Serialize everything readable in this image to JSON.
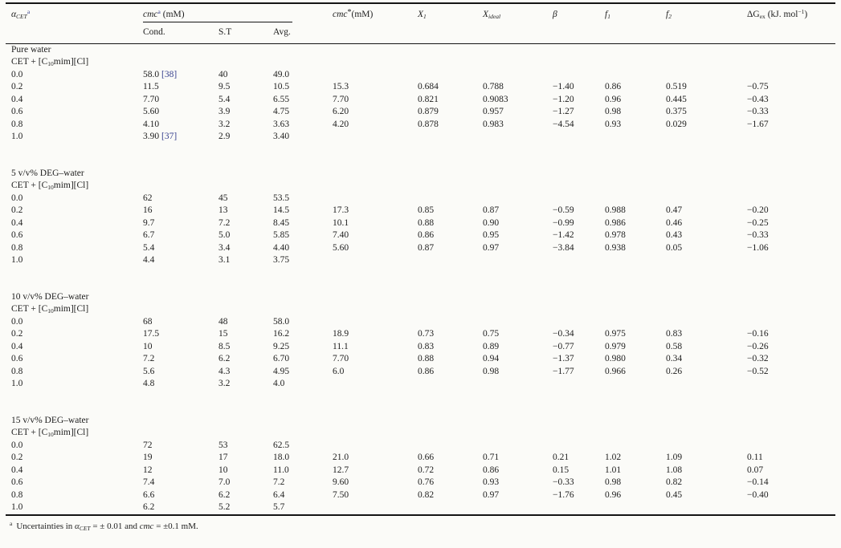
{
  "colors": {
    "citation_link": "#39428f",
    "rule": "#151515",
    "paper_bg": "#fbfbf8"
  },
  "table": {
    "header": {
      "alpha": {
        "symbol": "α",
        "sub": "CET",
        "sup": "a"
      },
      "cmc_group": {
        "name": "cmc",
        "sup": "a",
        "unit": " (mM)"
      },
      "cond": "Cond.",
      "st": "S.T",
      "avg": "Avg.",
      "cmc_star": {
        "name": "cmc",
        "sup": "*",
        "unit": "(mM)"
      },
      "x1": {
        "symbol": "X",
        "sub": "1"
      },
      "x_ideal": {
        "symbol": "X",
        "sub": "ideal"
      },
      "beta": "β",
      "f1": {
        "symbol": "f",
        "sub": "1"
      },
      "f2": {
        "symbol": "f",
        "sub": "2"
      },
      "dg_ex": {
        "pre": "ΔG",
        "sub": "ex",
        "unit": " (kJ. mol",
        "sup": "−1",
        "post": ")"
      }
    },
    "system": {
      "pre": "CET + [C",
      "sub": "10",
      "post": "mim][Cl]"
    },
    "sections": [
      {
        "title": "Pure water",
        "rows": [
          {
            "alpha": "0.0",
            "cond": "58.0",
            "cond_ref": "[38]",
            "st": "40",
            "avg": "49.0"
          },
          {
            "alpha": "0.2",
            "cond": "11.5",
            "st": "9.5",
            "avg": "10.5",
            "cmc_star": "15.3",
            "x1": "0.684",
            "x_ideal": "0.788",
            "beta": "−1.40",
            "f1": "0.86",
            "f2": "0.519",
            "dg_ex": "−0.75"
          },
          {
            "alpha": "0.4",
            "cond": "7.70",
            "st": "5.4",
            "avg": "6.55",
            "cmc_star": "7.70",
            "x1": "0.821",
            "x_ideal": "0.9083",
            "beta": "−1.20",
            "f1": "0.96",
            "f2": "0.445",
            "dg_ex": "−0.43"
          },
          {
            "alpha": "0.6",
            "cond": "5.60",
            "st": "3.9",
            "avg": "4.75",
            "cmc_star": "6.20",
            "x1": "0.879",
            "x_ideal": "0.957",
            "beta": "−1.27",
            "f1": "0.98",
            "f2": "0.375",
            "dg_ex": "−0.33"
          },
          {
            "alpha": "0.8",
            "cond": "4.10",
            "st": "3.2",
            "avg": "3.63",
            "cmc_star": "4.20",
            "x1": "0.878",
            "x_ideal": "0.983",
            "beta": "−4.54",
            "f1": "0.93",
            "f2": "0.029",
            "dg_ex": "−1.67"
          },
          {
            "alpha": "1.0",
            "cond": "3.90",
            "cond_ref": "[37]",
            "st": "2.9",
            "avg": "3.40"
          }
        ]
      },
      {
        "title": "5 v/v% DEG–water",
        "rows": [
          {
            "alpha": "0.0",
            "cond": "62",
            "st": "45",
            "avg": "53.5"
          },
          {
            "alpha": "0.2",
            "cond": "16",
            "st": "13",
            "avg": "14.5",
            "cmc_star": "17.3",
            "x1": "0.85",
            "x_ideal": "0.87",
            "beta": "−0.59",
            "f1": "0.988",
            "f2": "0.47",
            "dg_ex": "−0.20"
          },
          {
            "alpha": "0.4",
            "cond": "9.7",
            "st": "7.2",
            "avg": "8.45",
            "cmc_star": "10.1",
            "x1": "0.88",
            "x_ideal": "0.90",
            "beta": "−0.99",
            "f1": "0.986",
            "f2": "0.46",
            "dg_ex": "−0.25"
          },
          {
            "alpha": "0.6",
            "cond": "6.7",
            "st": "5.0",
            "avg": "5.85",
            "cmc_star": "7.40",
            "x1": "0.86",
            "x_ideal": "0.95",
            "beta": "−1.42",
            "f1": "0.978",
            "f2": "0.43",
            "dg_ex": "−0.33"
          },
          {
            "alpha": "0.8",
            "cond": "5.4",
            "st": "3.4",
            "avg": "4.40",
            "cmc_star": "5.60",
            "x1": "0.87",
            "x_ideal": "0.97",
            "beta": "−3.84",
            "f1": "0.938",
            "f2": "0.05",
            "dg_ex": "−1.06"
          },
          {
            "alpha": "1.0",
            "cond": "4.4",
            "st": "3.1",
            "avg": "3.75"
          }
        ]
      },
      {
        "title": "10 v/v% DEG–water",
        "rows": [
          {
            "alpha": "0.0",
            "cond": "68",
            "st": "48",
            "avg": "58.0"
          },
          {
            "alpha": "0.2",
            "cond": "17.5",
            "st": "15",
            "avg": "16.2",
            "cmc_star": "18.9",
            "x1": "0.73",
            "x_ideal": "0.75",
            "beta": "−0.34",
            "f1": "0.975",
            "f2": "0.83",
            "dg_ex": "−0.16"
          },
          {
            "alpha": "0.4",
            "cond": "10",
            "st": "8.5",
            "avg": "9.25",
            "cmc_star": "11.1",
            "x1": "0.83",
            "x_ideal": "0.89",
            "beta": "−0.77",
            "f1": "0.979",
            "f2": "0.58",
            "dg_ex": "−0.26"
          },
          {
            "alpha": "0.6",
            "cond": "7.2",
            "st": "6.2",
            "avg": "6.70",
            "cmc_star": "7.70",
            "x1": "0.88",
            "x_ideal": "0.94",
            "beta": "−1.37",
            "f1": "0.980",
            "f2": "0.34",
            "dg_ex": "−0.32"
          },
          {
            "alpha": "0.8",
            "cond": "5.6",
            "st": "4.3",
            "avg": "4.95",
            "cmc_star": "6.0",
            "x1": "0.86",
            "x_ideal": "0.98",
            "beta": "−1.77",
            "f1": "0.966",
            "f2": "0.26",
            "dg_ex": "−0.52"
          },
          {
            "alpha": "1.0",
            "cond": "4.8",
            "st": "3.2",
            "avg": "4.0"
          }
        ]
      },
      {
        "title": "15 v/v% DEG–water",
        "rows": [
          {
            "alpha": "0.0",
            "cond": "72",
            "st": "53",
            "avg": "62.5"
          },
          {
            "alpha": "0.2",
            "cond": "19",
            "st": "17",
            "avg": "18.0",
            "cmc_star": "21.0",
            "x1": "0.66",
            "x_ideal": "0.71",
            "beta": "0.21",
            "f1": "1.02",
            "f2": "1.09",
            "dg_ex": "0.11"
          },
          {
            "alpha": "0.4",
            "cond": "12",
            "st": "10",
            "avg": "11.0",
            "cmc_star": "12.7",
            "x1": "0.72",
            "x_ideal": "0.86",
            "beta": "0.15",
            "f1": "1.01",
            "f2": "1.08",
            "dg_ex": "0.07"
          },
          {
            "alpha": "0.6",
            "cond": "7.4",
            "st": "7.0",
            "avg": "7.2",
            "cmc_star": "9.60",
            "x1": "0.76",
            "x_ideal": "0.93",
            "beta": "−0.33",
            "f1": "0.98",
            "f2": "0.82",
            "dg_ex": "−0.14"
          },
          {
            "alpha": "0.8",
            "cond": "6.6",
            "st": "6.2",
            "avg": "6.4",
            "cmc_star": "7.50",
            "x1": "0.82",
            "x_ideal": "0.97",
            "beta": "−1.76",
            "f1": "0.96",
            "f2": "0.45",
            "dg_ex": "−0.40"
          },
          {
            "alpha": "1.0",
            "cond": "6.2",
            "st": "5.2",
            "avg": "5.7"
          }
        ]
      }
    ]
  },
  "footnote": {
    "marker": "a",
    "part1": "Uncertainties in ",
    "alpha_symbol": "α",
    "alpha_sub": "CET",
    "part2": " = ± 0.01 and ",
    "cmc_name": "cmc",
    "part3": " = ±0.1 mM."
  }
}
